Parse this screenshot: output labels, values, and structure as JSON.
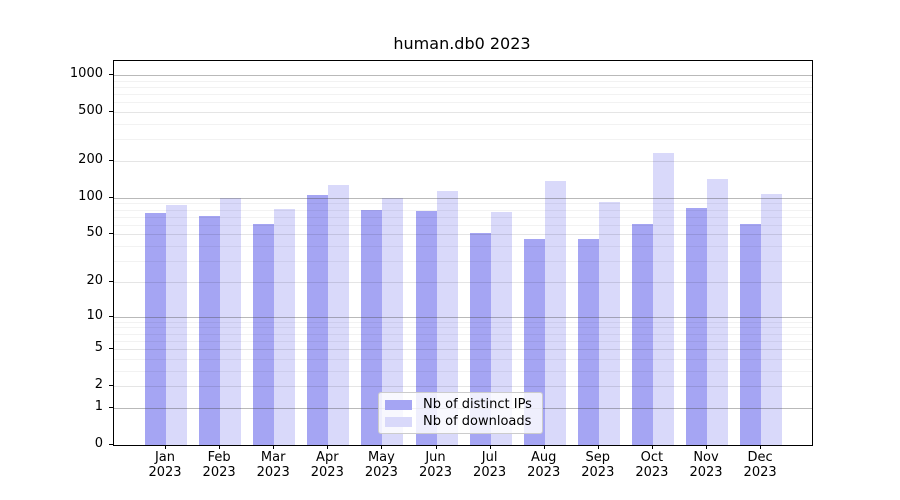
{
  "title": "human.db0 2023",
  "chart_data": {
    "type": "bar",
    "title": "human.db0 2023",
    "categories": [
      "Jan",
      "Feb",
      "Mar",
      "Apr",
      "May",
      "Jun",
      "Jul",
      "Aug",
      "Sep",
      "Oct",
      "Nov",
      "Dec"
    ],
    "x_year_line": "2023",
    "series": [
      {
        "name": "Nb of distinct IPs",
        "color": "#a5a5f3",
        "values": [
          75,
          71,
          61,
          105,
          79,
          78,
          51,
          46,
          46,
          61,
          82,
          61
        ]
      },
      {
        "name": "Nb of downloads",
        "color": "#d9d9fa",
        "values": [
          88,
          100,
          81,
          127,
          100,
          114,
          77,
          137,
          93,
          231,
          143,
          107
        ]
      }
    ],
    "y_ticks": [
      0,
      1,
      2,
      5,
      10,
      20,
      50,
      100,
      200,
      500,
      1000
    ],
    "y_scale": "pseudo-log log10(1+v)",
    "ylim": [
      0,
      1300
    ],
    "grid": "horizontal, major and log-minor lines drawn over bars",
    "legend_position": "lower center",
    "xlabel": "",
    "ylabel": ""
  },
  "colors": {
    "bar_distinct_ips": "#a5a5f3",
    "bar_downloads": "#d9d9fa",
    "grid_strong": "#b3b3b3",
    "grid_weak": "#e2e2e2",
    "spine": "#000000",
    "legend_border": "#cccccc"
  }
}
